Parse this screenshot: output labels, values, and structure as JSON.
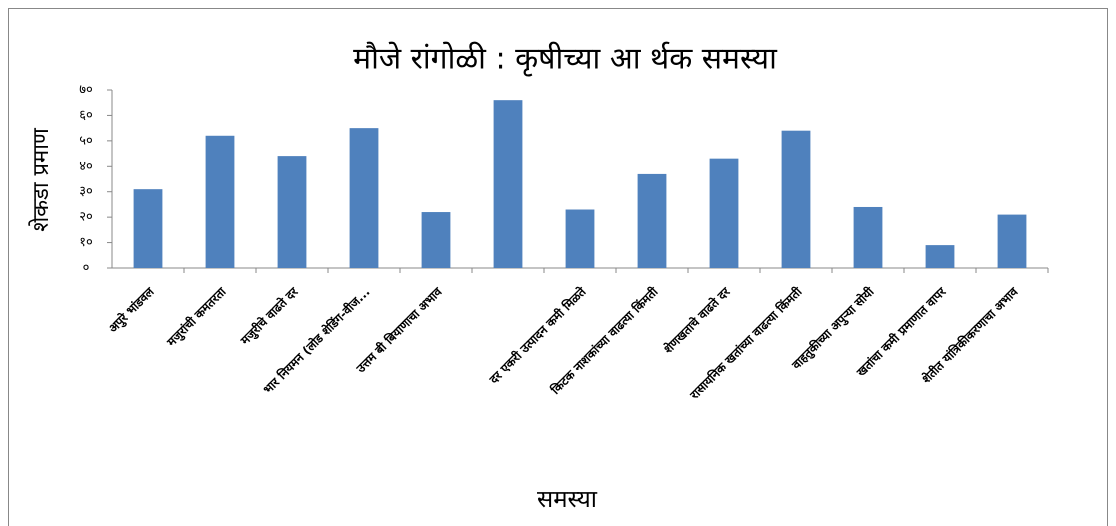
{
  "chart_data": {
    "type": "bar",
    "title": "मौजे रांगोळी : कृषीच्या आ र्थक समस्या",
    "y_label": "शेकडा प्रमाण",
    "x_label": "समस्या",
    "categories": [
      "अपुरे भांडवल",
      "मजुरांची कमतरता",
      "मजुरीचे वाढते दर",
      "भार नियमन (लोड शेडिंग-वीज...",
      "उत्तम बी बियाणाचा अभाव",
      null,
      "दर एकरी उत्पादन कमी मिळते",
      "किटक नाशकांच्या वाढत्या किंमती",
      "शेणखताचे वाढते दर",
      "रासायनिक खतांच्या वाढत्या किंमती",
      "वाहतुकीच्या अपुऱ्या सोयी",
      "खतांचा कमी प्रमाणात वापर",
      "शेतीत यांत्रिकीकरणाचा अभाव"
    ],
    "values": [
      31,
      52,
      44,
      55,
      22,
      66,
      23,
      37,
      43,
      54,
      24,
      9,
      21
    ],
    "color": "#4f81bd",
    "ylim": [
      0,
      70
    ],
    "yticks": [
      {
        "value": 0,
        "label": "०"
      },
      {
        "value": 10,
        "label": "१०"
      },
      {
        "value": 20,
        "label": "२०"
      },
      {
        "value": 30,
        "label": "३०"
      },
      {
        "value": 40,
        "label": "४०"
      },
      {
        "value": 50,
        "label": "५०"
      },
      {
        "value": 60,
        "label": "६०"
      },
      {
        "value": 70,
        "label": "७०"
      }
    ],
    "grid": false
  }
}
